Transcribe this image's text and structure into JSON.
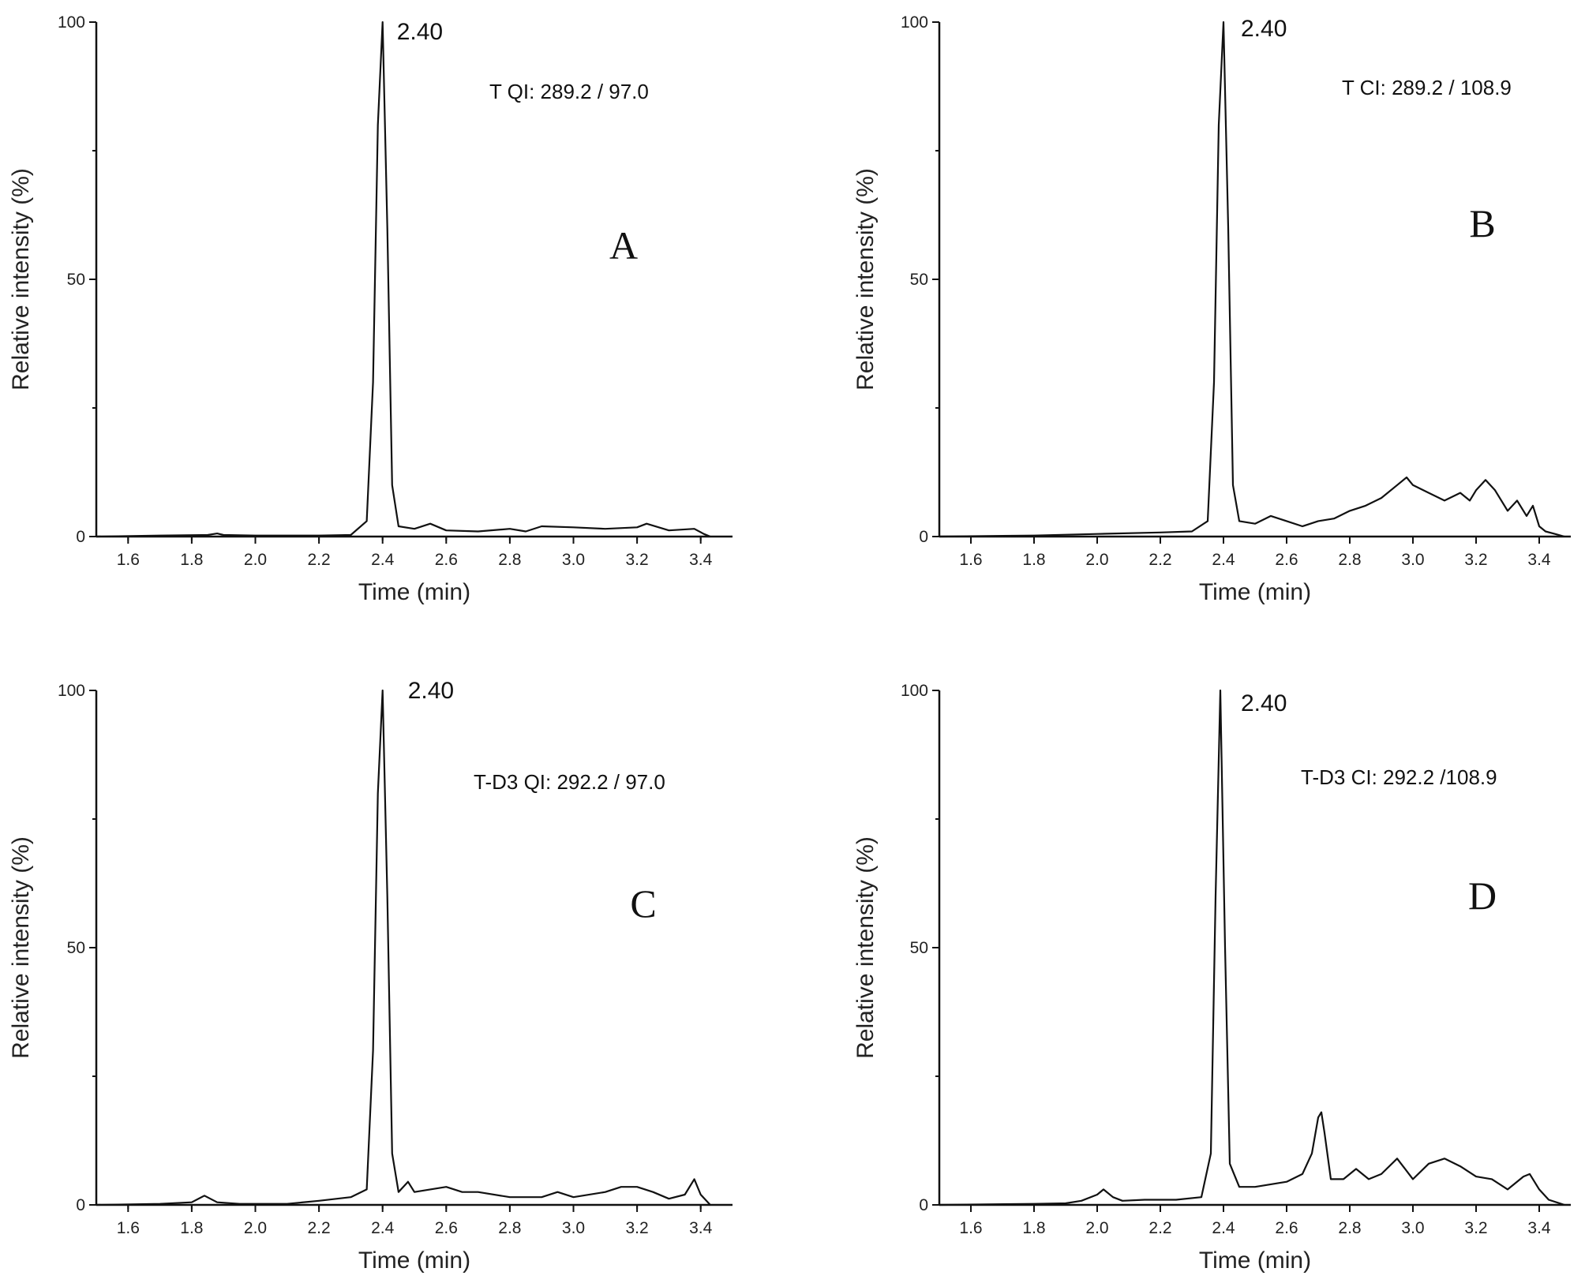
{
  "chart_data": [
    {
      "type": "line",
      "panel_letter": "A",
      "transition_label": "T QI: 289.2  / 97.0",
      "peak_label": "2.40",
      "xlabel": "Time (min)",
      "ylabel": "Relative intensity (%)",
      "xlim": [
        1.5,
        3.5
      ],
      "ylim": [
        0,
        100
      ],
      "xticks": [
        "1.6",
        "1.8",
        "2.0",
        "2.2",
        "2.4",
        "2.6",
        "2.8",
        "3.0",
        "3.2",
        "3.4"
      ],
      "yticks": [
        "0",
        "50",
        "100"
      ],
      "series": [
        {
          "x": [
            1.5,
            1.7,
            1.85,
            1.88,
            1.9,
            2.0,
            2.2,
            2.3,
            2.35,
            2.37,
            2.385,
            2.4,
            2.415,
            2.43,
            2.45,
            2.5,
            2.55,
            2.6,
            2.7,
            2.8,
            2.85,
            2.9,
            3.0,
            3.1,
            3.2,
            3.23,
            3.3,
            3.38,
            3.41,
            3.43
          ],
          "y": [
            0,
            0.2,
            0.3,
            0.6,
            0.3,
            0.2,
            0.2,
            0.3,
            3,
            30,
            80,
            100,
            60,
            10,
            2,
            1.5,
            2.5,
            1.2,
            1.0,
            1.5,
            1.0,
            2.0,
            1.8,
            1.5,
            1.8,
            2.5,
            1.2,
            1.5,
            0.5,
            0
          ]
        }
      ]
    },
    {
      "type": "line",
      "panel_letter": "B",
      "transition_label": "T CI: 289.2  / 108.9",
      "peak_label": "2.40",
      "xlabel": "Time (min)",
      "ylabel": "Relative intensity (%)",
      "xlim": [
        1.5,
        3.5
      ],
      "ylim": [
        0,
        100
      ],
      "xticks": [
        "1.6",
        "1.8",
        "2.0",
        "2.2",
        "2.4",
        "2.6",
        "2.8",
        "3.0",
        "3.2",
        "3.4"
      ],
      "yticks": [
        "0",
        "50",
        "100"
      ],
      "series": [
        {
          "x": [
            1.5,
            1.8,
            2.0,
            2.2,
            2.3,
            2.35,
            2.37,
            2.385,
            2.4,
            2.415,
            2.43,
            2.45,
            2.5,
            2.55,
            2.6,
            2.65,
            2.7,
            2.75,
            2.8,
            2.85,
            2.9,
            2.95,
            2.98,
            3.0,
            3.05,
            3.1,
            3.15,
            3.18,
            3.2,
            3.23,
            3.26,
            3.3,
            3.33,
            3.36,
            3.38,
            3.4,
            3.42,
            3.45,
            3.48
          ],
          "y": [
            0,
            0.2,
            0.5,
            0.8,
            1.0,
            3,
            30,
            80,
            100,
            60,
            10,
            3,
            2.5,
            4,
            3,
            2,
            3,
            3.5,
            5,
            6,
            7.5,
            10,
            11.5,
            10,
            8.5,
            7,
            8.5,
            7,
            9,
            11,
            9,
            5,
            7,
            4,
            6,
            2,
            1,
            0.5,
            0
          ]
        }
      ]
    },
    {
      "type": "line",
      "panel_letter": "C",
      "transition_label": "T-D3 QI: 292.2  / 97.0",
      "peak_label": "2.40",
      "xlabel": "Time (min)",
      "ylabel": "Relative intensity (%)",
      "xlim": [
        1.5,
        3.5
      ],
      "ylim": [
        0,
        100
      ],
      "xticks": [
        "1.6",
        "1.8",
        "2.0",
        "2.2",
        "2.4",
        "2.6",
        "2.8",
        "3.0",
        "3.2",
        "3.4"
      ],
      "yticks": [
        "0",
        "50",
        "100"
      ],
      "series": [
        {
          "x": [
            1.5,
            1.7,
            1.8,
            1.84,
            1.88,
            1.95,
            2.1,
            2.2,
            2.3,
            2.35,
            2.37,
            2.385,
            2.4,
            2.415,
            2.43,
            2.45,
            2.48,
            2.5,
            2.55,
            2.6,
            2.65,
            2.7,
            2.8,
            2.9,
            2.95,
            3.0,
            3.1,
            3.15,
            3.2,
            3.25,
            3.3,
            3.35,
            3.38,
            3.4,
            3.43
          ],
          "y": [
            0,
            0.2,
            0.5,
            1.8,
            0.5,
            0.2,
            0.2,
            0.8,
            1.5,
            3,
            30,
            80,
            100,
            60,
            10,
            2.5,
            4.5,
            2.5,
            3,
            3.5,
            2.5,
            2.5,
            1.5,
            1.5,
            2.5,
            1.5,
            2.5,
            3.5,
            3.5,
            2.5,
            1.2,
            2,
            5,
            2,
            0
          ]
        }
      ]
    },
    {
      "type": "line",
      "panel_letter": "D",
      "transition_label": "T-D3 CI: 292.2 /108.9",
      "peak_label": "2.40",
      "xlabel": "Time (min)",
      "ylabel": "Relative intensity (%)",
      "xlim": [
        1.5,
        3.5
      ],
      "ylim": [
        0,
        100
      ],
      "xticks": [
        "1.6",
        "1.8",
        "2.0",
        "2.2",
        "2.4",
        "2.6",
        "2.8",
        "3.0",
        "3.2",
        "3.4"
      ],
      "yticks": [
        "0",
        "50",
        "100"
      ],
      "series": [
        {
          "x": [
            1.5,
            1.8,
            1.9,
            1.95,
            2.0,
            2.02,
            2.05,
            2.08,
            2.15,
            2.25,
            2.33,
            2.36,
            2.375,
            2.39,
            2.405,
            2.42,
            2.45,
            2.5,
            2.55,
            2.6,
            2.65,
            2.68,
            2.7,
            2.71,
            2.72,
            2.74,
            2.78,
            2.82,
            2.86,
            2.9,
            2.95,
            3.0,
            3.05,
            3.1,
            3.15,
            3.2,
            3.25,
            3.3,
            3.35,
            3.37,
            3.4,
            3.43,
            3.48
          ],
          "y": [
            0,
            0.2,
            0.3,
            0.8,
            2,
            3,
            1.5,
            0.8,
            1.0,
            1.0,
            1.5,
            10,
            60,
            100,
            50,
            8,
            3.5,
            3.5,
            4,
            4.5,
            6,
            10,
            17,
            18,
            14,
            5,
            5,
            7,
            5,
            6,
            9,
            5,
            8,
            9,
            7.5,
            5.5,
            5,
            3,
            5.5,
            6,
            3,
            1,
            0
          ]
        }
      ]
    }
  ]
}
